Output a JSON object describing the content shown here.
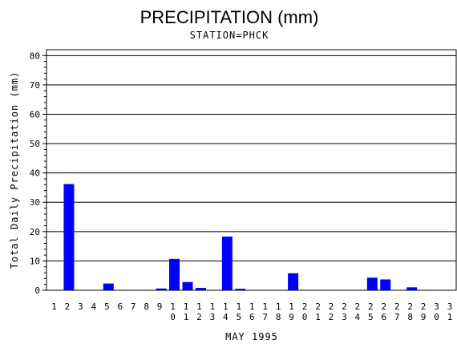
{
  "chart_data": {
    "type": "bar",
    "title": "PRECIPITATION (mm)",
    "subtitle": "STATION=PHCK",
    "xlabel": "MAY 1995",
    "ylabel": "Total Daily Precipitation (mm)",
    "ylim": [
      0,
      82
    ],
    "yticks": [
      0,
      10,
      20,
      30,
      40,
      50,
      60,
      70,
      80
    ],
    "grid": true,
    "bar_color": "#0000ff",
    "categories": [
      "1",
      "2",
      "3",
      "4",
      "5",
      "6",
      "7",
      "8",
      "9",
      "10",
      "11",
      "12",
      "13",
      "14",
      "15",
      "16",
      "17",
      "18",
      "19",
      "20",
      "21",
      "22",
      "23",
      "24",
      "25",
      "26",
      "27",
      "28",
      "29",
      "30",
      "31"
    ],
    "values": [
      0,
      36.2,
      0,
      0,
      2.3,
      0,
      0,
      0,
      0.6,
      10.7,
      2.8,
      0.8,
      0,
      18.3,
      0.5,
      0,
      0,
      0,
      5.8,
      0,
      0,
      0,
      0,
      0,
      4.3,
      3.7,
      0,
      1.0,
      0,
      0,
      0
    ]
  }
}
